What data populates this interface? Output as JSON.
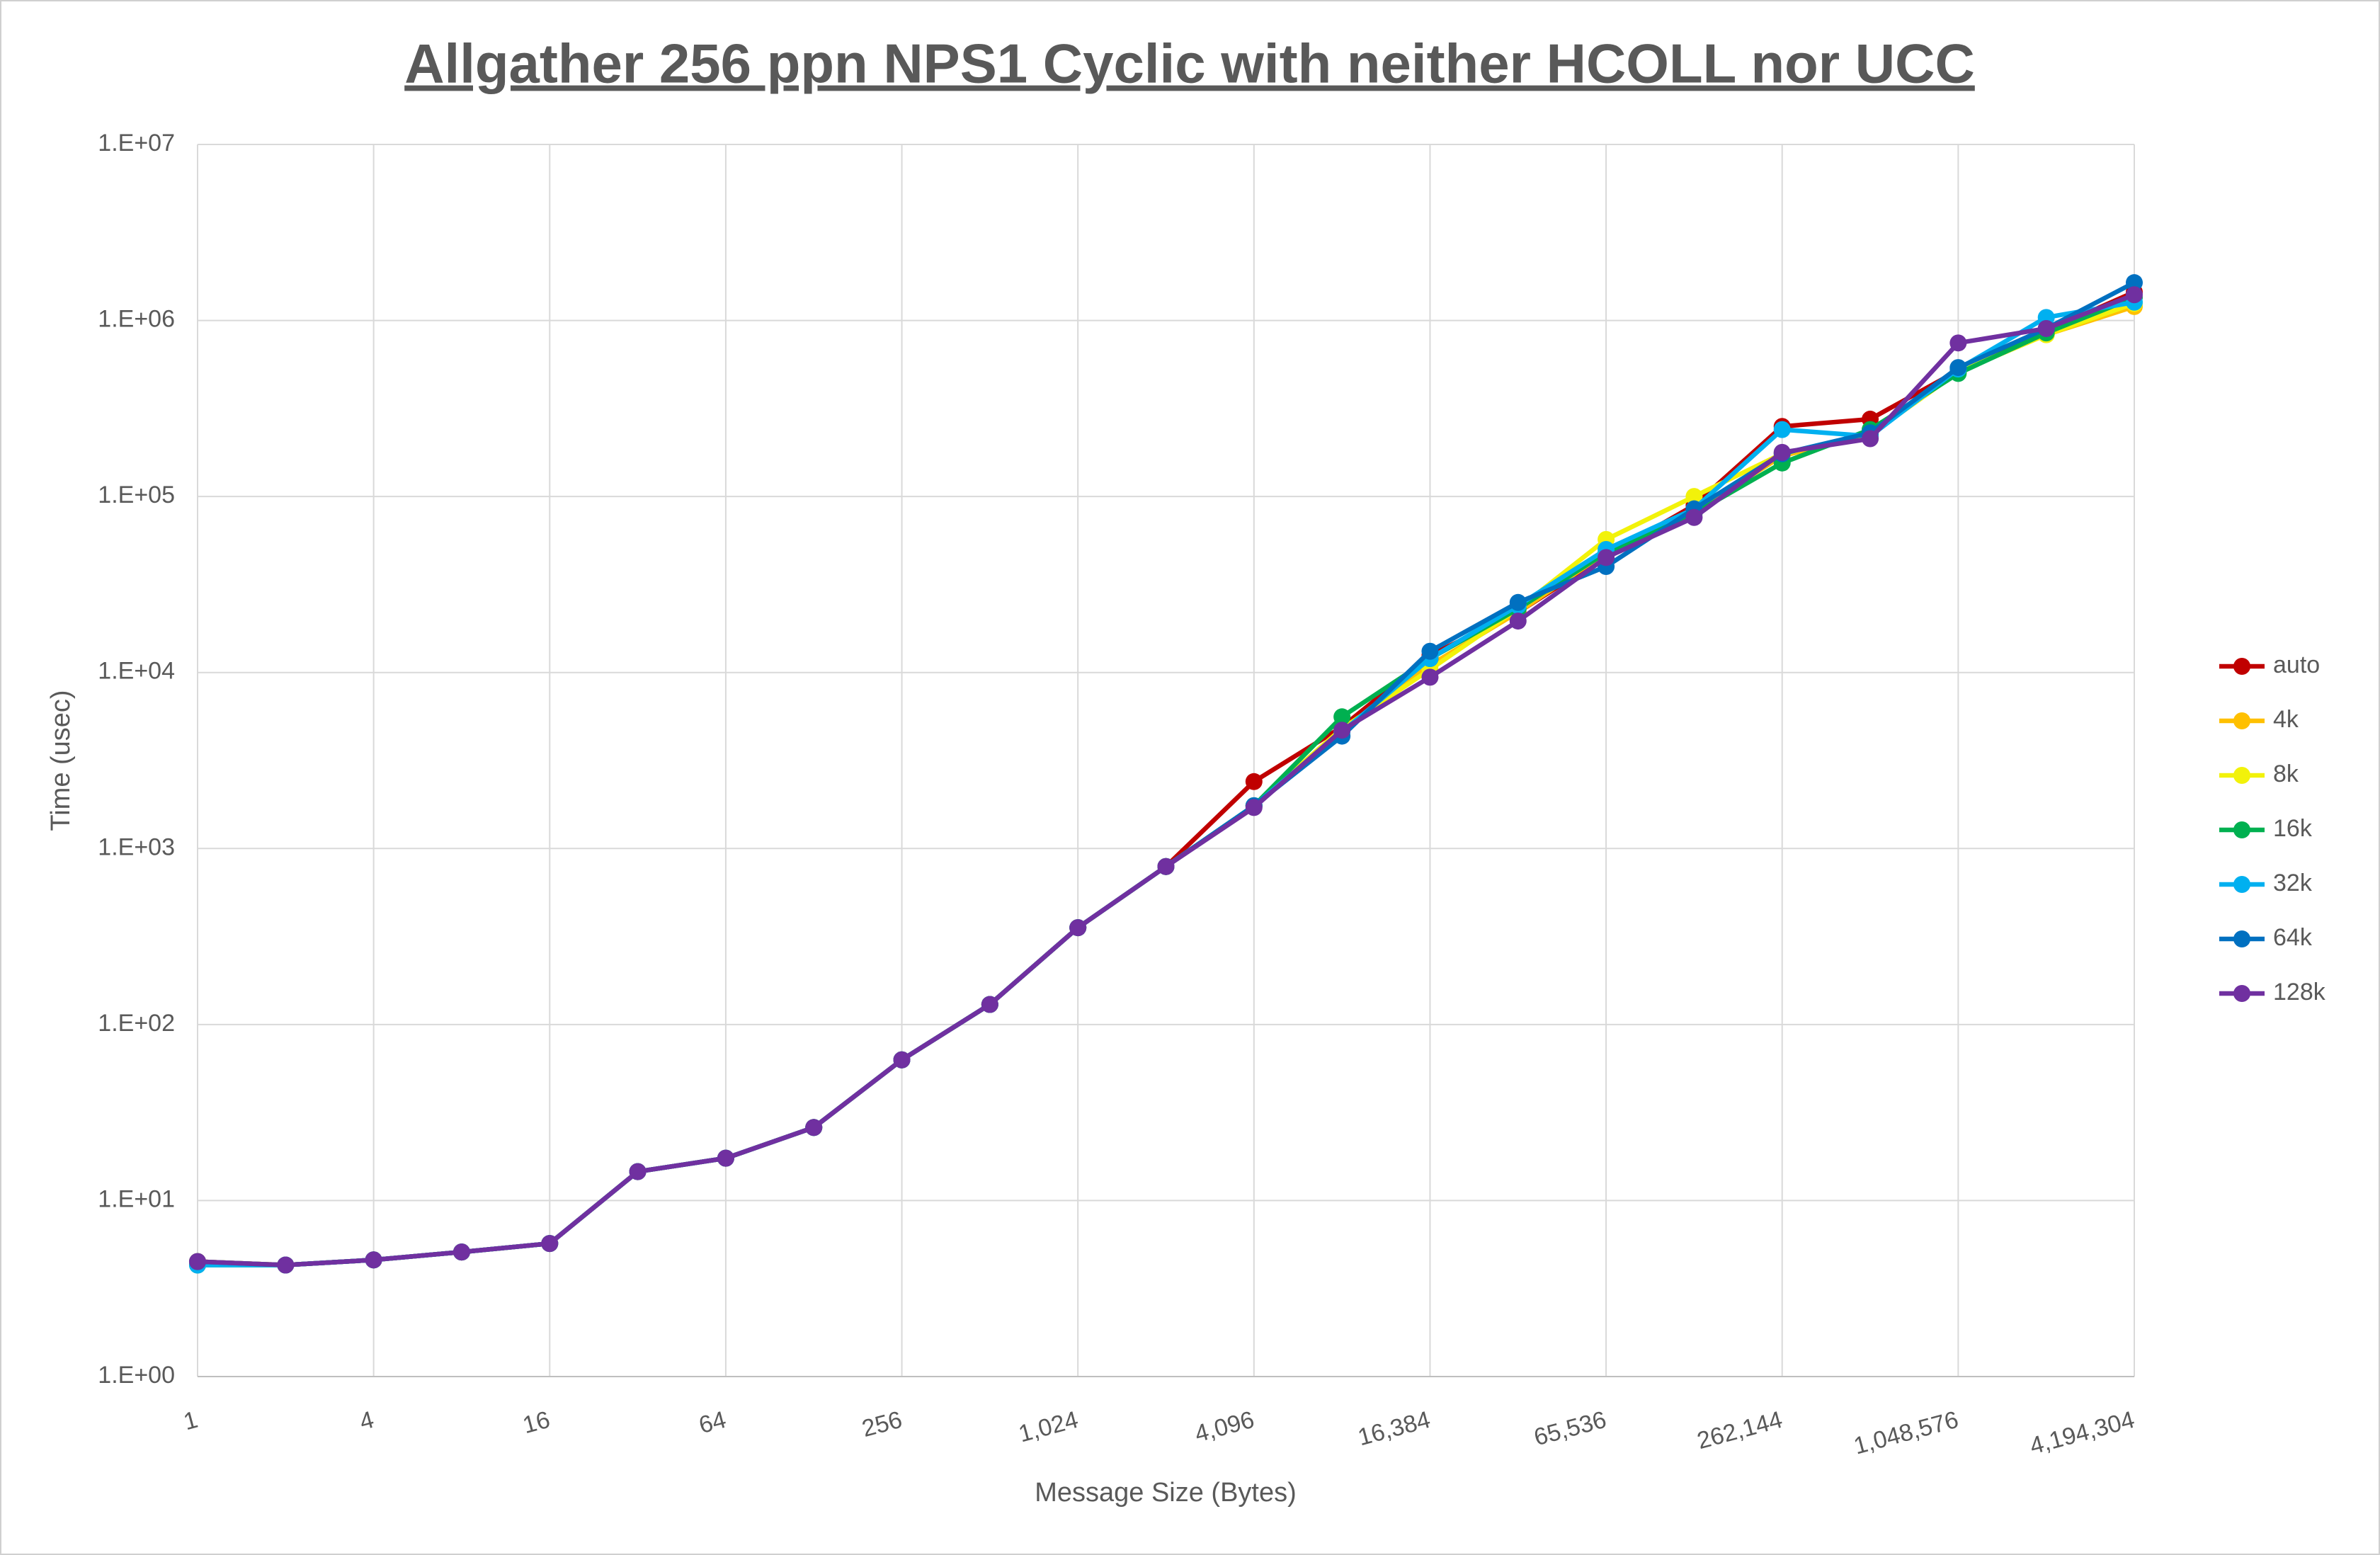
{
  "chart_data": {
    "type": "line",
    "title": "Allgather 256 ppn NPS1 Cyclic with neither HCOLL nor UCC",
    "x_label": "Message Size (Bytes)",
    "y_label": "Time (usec)",
    "x": [
      1,
      2,
      4,
      8,
      16,
      32,
      64,
      128,
      256,
      512,
      1024,
      2048,
      4096,
      8192,
      16384,
      32768,
      65536,
      131072,
      262144,
      524288,
      1048576,
      2097152,
      4194304
    ],
    "x_log_base": 2,
    "y_log_base": 10,
    "grid": true,
    "legend": "right",
    "xlim": [
      1,
      4194304
    ],
    "xticks": [
      1,
      4,
      16,
      64,
      256,
      {
        "value": 1024,
        "label": "1,024"
      },
      {
        "value": 4096,
        "label": "4,096"
      },
      {
        "value": 16384,
        "label": "16,384"
      },
      {
        "value": 65536,
        "label": "65,536"
      },
      {
        "value": 262144,
        "label": "262,144"
      },
      {
        "value": 1048576,
        "label": "1,048,576"
      },
      {
        "value": 4194304,
        "label": "4,194,304"
      }
    ],
    "ylim": [
      1,
      10000000
    ],
    "yticks": [
      {
        "value": 1,
        "label": "1.E+00"
      },
      {
        "value": 10,
        "label": "1.E+01"
      },
      {
        "value": 100,
        "label": "1.E+02"
      },
      {
        "value": 1000,
        "label": "1.E+03"
      },
      {
        "value": 10000,
        "label": "1.E+04"
      },
      {
        "value": 100000,
        "label": "1.E+05"
      },
      {
        "value": 1000000,
        "label": "1.E+06"
      },
      {
        "value": 10000000,
        "label": "1.E+07"
      }
    ],
    "series": [
      {
        "name": "auto",
        "color": "#c00000",
        "values": [
          4.5,
          4.3,
          4.6,
          5.1,
          5.7,
          14.6,
          17.4,
          26,
          63,
          130,
          355,
          790,
          2400,
          4900,
          12500,
          22000,
          46000,
          89000,
          250000,
          275000,
          520000,
          870000,
          1450000
        ]
      },
      {
        "name": "4k",
        "color": "#ffc000",
        "values": [
          4.5,
          4.3,
          4.6,
          5.1,
          5.7,
          14.6,
          17.4,
          26,
          63,
          130,
          355,
          790,
          1750,
          4700,
          11000,
          22000,
          48000,
          82000,
          170000,
          225000,
          510000,
          830000,
          1200000
        ]
      },
      {
        "name": "8k",
        "color": "#f2f20a",
        "values": [
          4.5,
          4.3,
          4.6,
          5.1,
          5.7,
          14.6,
          17.4,
          26,
          63,
          130,
          355,
          790,
          1750,
          4800,
          10400,
          23000,
          57000,
          100000,
          175000,
          225000,
          510000,
          830000,
          1250000
        ]
      },
      {
        "name": "16k",
        "color": "#00b050",
        "values": [
          4.3,
          4.3,
          4.6,
          5.1,
          5.7,
          14.6,
          17.4,
          26,
          63,
          130,
          355,
          790,
          1750,
          5600,
          12000,
          23000,
          48000,
          80000,
          155000,
          240000,
          500000,
          850000,
          1350000
        ]
      },
      {
        "name": "32k",
        "color": "#00b0f0",
        "values": [
          4.3,
          4.3,
          4.6,
          5.1,
          5.7,
          14.6,
          17.4,
          26,
          63,
          130,
          355,
          790,
          1750,
          4600,
          12000,
          24000,
          50000,
          85000,
          240000,
          220000,
          530000,
          1040000,
          1270000
        ]
      },
      {
        "name": "64k",
        "color": "#0070c0",
        "values": [
          4.5,
          4.3,
          4.6,
          5.1,
          5.7,
          14.6,
          17.4,
          26,
          63,
          130,
          355,
          790,
          1750,
          4350,
          13200,
          25000,
          40000,
          85000,
          175000,
          230000,
          540000,
          900000,
          1640000
        ]
      },
      {
        "name": "128k",
        "color": "#7030a0",
        "values": [
          4.5,
          4.3,
          4.6,
          5.1,
          5.7,
          14.6,
          17.4,
          26,
          63,
          130,
          355,
          790,
          1710,
          4700,
          9400,
          19600,
          45000,
          76000,
          178000,
          213000,
          745000,
          900000,
          1400000
        ]
      }
    ]
  }
}
